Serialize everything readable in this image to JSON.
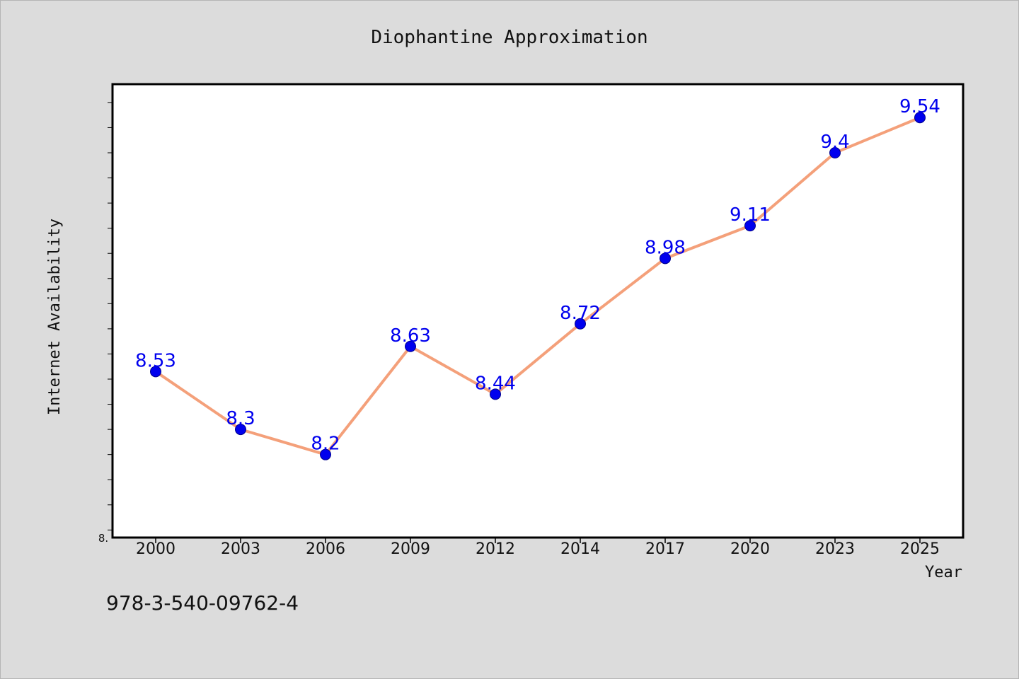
{
  "chart_data": {
    "type": "line",
    "title": "Diophantine Approximation",
    "xlabel": "Year",
    "ylabel": "Internet Availability",
    "categories": [
      "2000",
      "2003",
      "2006",
      "2009",
      "2012",
      "2014",
      "2017",
      "2020",
      "2023",
      "2025"
    ],
    "series": [
      {
        "values": [
          8.53,
          8.3,
          8.2,
          8.63,
          8.44,
          8.72,
          8.98,
          9.11,
          9.4,
          9.54
        ]
      }
    ],
    "ylim": [
      7.87,
      9.67
    ],
    "y_ticks_visible": [
      "8."
    ],
    "y_tick_step": 0.1,
    "line_color": "#f4a07a",
    "marker_color": "#0000ee",
    "label_color": "#0000ee",
    "grid": false,
    "legend": "none"
  },
  "footer": {
    "isbn": "978-3-540-09762-4"
  }
}
